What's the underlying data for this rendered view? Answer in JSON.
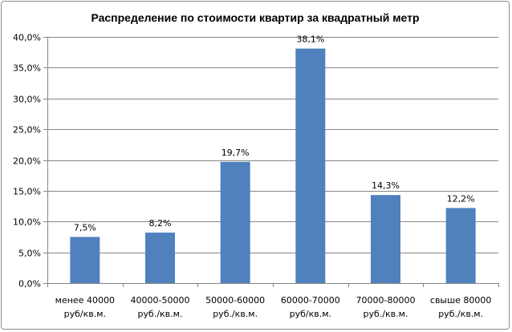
{
  "chart_data": {
    "type": "bar",
    "title": "Распределение по стоимости квартир за квадратный метр",
    "categories": [
      [
        "менее 40000",
        "руб/кв.м."
      ],
      [
        "40000-50000",
        "руб./кв.м."
      ],
      [
        "50000-60000",
        "руб./кв.м."
      ],
      [
        "60000-70000",
        "руб/кв.м."
      ],
      [
        "70000-80000",
        "руб./кв.м."
      ],
      [
        "свыше 80000",
        "руб./кв.м."
      ]
    ],
    "values": [
      7.5,
      8.2,
      19.7,
      38.1,
      14.3,
      12.2
    ],
    "data_labels": [
      "7,5%",
      "8,2%",
      "19,7%",
      "38,1%",
      "14,3%",
      "12,2%"
    ],
    "ylim": [
      0,
      40
    ],
    "y_ticks": [
      0,
      5,
      10,
      15,
      20,
      25,
      30,
      35,
      40
    ],
    "y_tick_labels": [
      "0,0%",
      "5,0%",
      "10,0%",
      "15,0%",
      "20,0%",
      "25,0%",
      "30,0%",
      "35,0%",
      "40,0%"
    ],
    "xlabel": "",
    "ylabel": "",
    "grid": true,
    "legend": "none",
    "bar_color": "#4f81bd",
    "grid_color": "#868686"
  }
}
